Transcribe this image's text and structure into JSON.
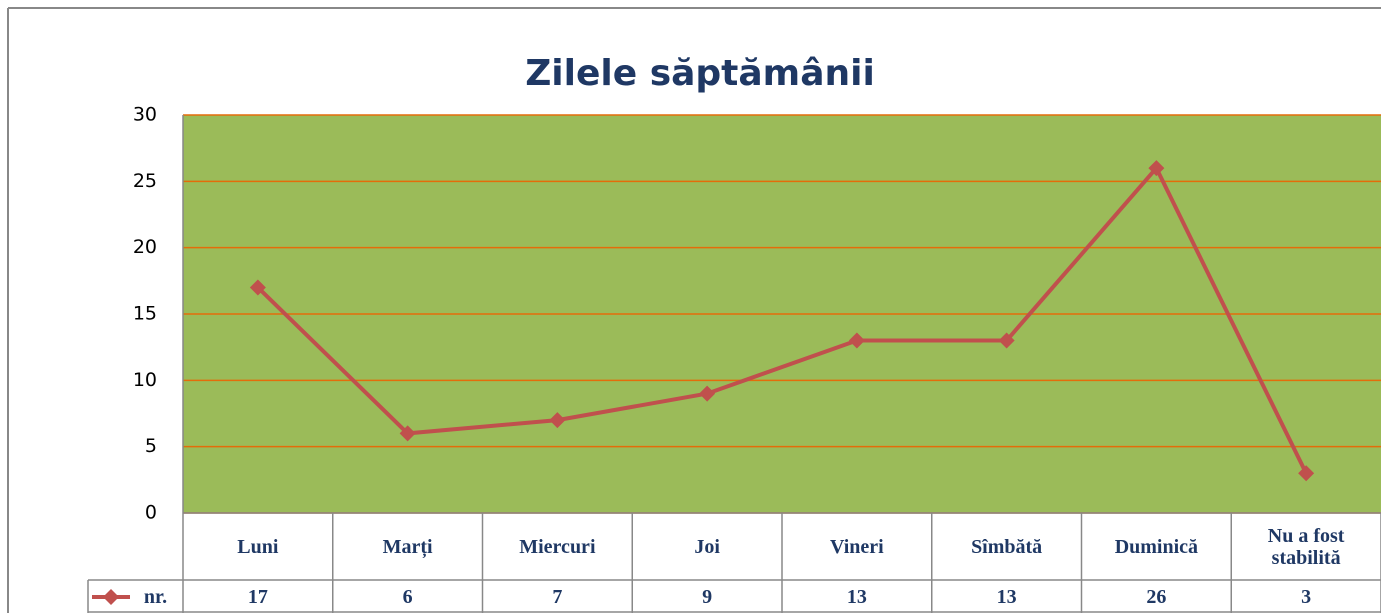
{
  "chart_data": {
    "type": "line",
    "title": "Zilele săptămânii",
    "categories": [
      "Luni",
      "Marți",
      "Miercuri",
      "Joi",
      "Vineri",
      "Sîmbătă",
      "Duminică",
      "Nu a fost stabilită"
    ],
    "series": [
      {
        "name": "nr.",
        "color": "#c0504d",
        "values": [
          17,
          6,
          7,
          9,
          13,
          13,
          26,
          3
        ]
      }
    ],
    "ylim": [
      0,
      30
    ],
    "yticks": [
      0,
      5,
      10,
      15,
      20,
      25,
      30
    ],
    "grid": true,
    "plot_background": "#9bbb59",
    "grid_color": "#e46c0a"
  }
}
